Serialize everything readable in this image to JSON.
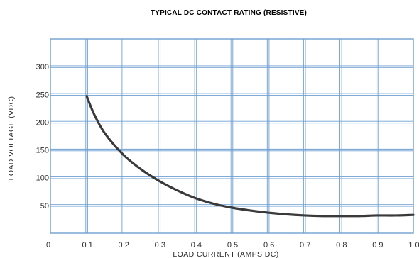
{
  "chart_data": {
    "type": "line",
    "title": "TYPICAL DC CONTACT RATING (RESISTIVE)",
    "xlabel": "LOAD CURRENT (AMPS DC)",
    "ylabel": "LOAD VOLTAGE (VDC)",
    "xlim": [
      0,
      1.0
    ],
    "ylim": [
      0,
      350
    ],
    "grid": true,
    "colors": {
      "grid": "#6f9fd1",
      "frame": "#6f9fd1",
      "curve": "#3a3a3a"
    },
    "x_ticks": [
      {
        "value": 0.0,
        "label": "0"
      },
      {
        "value": 0.1,
        "label": "0 1"
      },
      {
        "value": 0.2,
        "label": "0 2"
      },
      {
        "value": 0.3,
        "label": "0 3"
      },
      {
        "value": 0.4,
        "label": "0 4"
      },
      {
        "value": 0.5,
        "label": "0 5"
      },
      {
        "value": 0.6,
        "label": "0 6"
      },
      {
        "value": 0.7,
        "label": "0 7"
      },
      {
        "value": 0.8,
        "label": "0 8"
      },
      {
        "value": 0.9,
        "label": "0 9"
      },
      {
        "value": 1.0,
        "label": "1 0"
      }
    ],
    "y_ticks": [
      {
        "value": 50,
        "label": "50"
      },
      {
        "value": 100,
        "label": "100"
      },
      {
        "value": 150,
        "label": "150"
      },
      {
        "value": 200,
        "label": "200"
      },
      {
        "value": 250,
        "label": "250"
      },
      {
        "value": 300,
        "label": "300"
      }
    ],
    "series": [
      {
        "x": [
          0.1,
          0.12,
          0.15,
          0.2,
          0.25,
          0.3,
          0.35,
          0.4,
          0.45,
          0.5,
          0.55,
          0.6,
          0.65,
          0.7,
          0.75,
          0.8,
          0.85,
          0.9,
          0.95,
          1.0
        ],
        "y": [
          247,
          215,
          180,
          142,
          115,
          94,
          77,
          63,
          53,
          46,
          41,
          37,
          34,
          32,
          31,
          31,
          31,
          32,
          32,
          33
        ]
      }
    ]
  }
}
